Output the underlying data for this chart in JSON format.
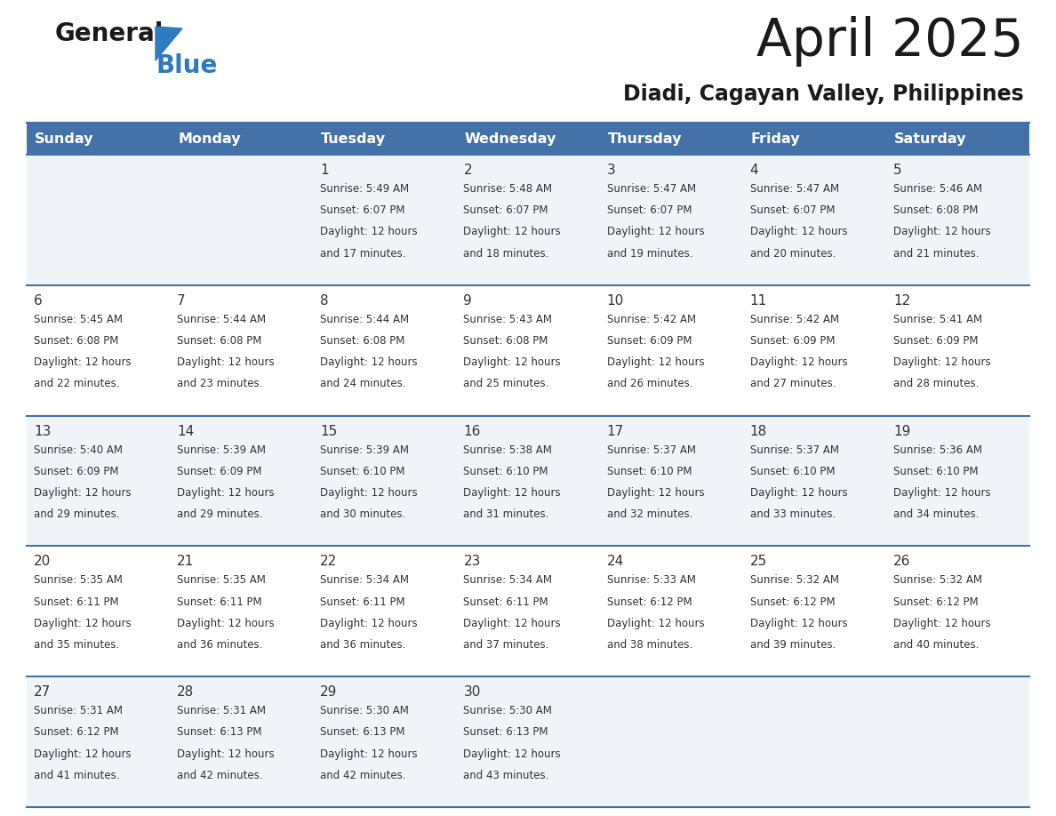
{
  "title": "April 2025",
  "subtitle": "Diadi, Cagayan Valley, Philippines",
  "header_bg": "#4472a8",
  "header_text_color": "#ffffff",
  "days_of_week": [
    "Sunday",
    "Monday",
    "Tuesday",
    "Wednesday",
    "Thursday",
    "Friday",
    "Saturday"
  ],
  "row_bg_odd": "#f0f4f8",
  "row_bg_even": "#ffffff",
  "cell_text_color": "#333333",
  "border_color": "#4472a8",
  "logo_general_color": "#1a1a1a",
  "logo_blue_color": "#2e7bbf",
  "logo_triangle_color": "#2e7bbf",
  "title_color": "#1a1a1a",
  "subtitle_color": "#1a1a1a",
  "calendar_data": [
    [
      {
        "day": "",
        "sunrise": "",
        "sunset": "",
        "daylight_mins": ""
      },
      {
        "day": "",
        "sunrise": "",
        "sunset": "",
        "daylight_mins": ""
      },
      {
        "day": "1",
        "sunrise": "5:49 AM",
        "sunset": "6:07 PM",
        "daylight_mins": "and 17 minutes."
      },
      {
        "day": "2",
        "sunrise": "5:48 AM",
        "sunset": "6:07 PM",
        "daylight_mins": "and 18 minutes."
      },
      {
        "day": "3",
        "sunrise": "5:47 AM",
        "sunset": "6:07 PM",
        "daylight_mins": "and 19 minutes."
      },
      {
        "day": "4",
        "sunrise": "5:47 AM",
        "sunset": "6:07 PM",
        "daylight_mins": "and 20 minutes."
      },
      {
        "day": "5",
        "sunrise": "5:46 AM",
        "sunset": "6:08 PM",
        "daylight_mins": "and 21 minutes."
      }
    ],
    [
      {
        "day": "6",
        "sunrise": "5:45 AM",
        "sunset": "6:08 PM",
        "daylight_mins": "and 22 minutes."
      },
      {
        "day": "7",
        "sunrise": "5:44 AM",
        "sunset": "6:08 PM",
        "daylight_mins": "and 23 minutes."
      },
      {
        "day": "8",
        "sunrise": "5:44 AM",
        "sunset": "6:08 PM",
        "daylight_mins": "and 24 minutes."
      },
      {
        "day": "9",
        "sunrise": "5:43 AM",
        "sunset": "6:08 PM",
        "daylight_mins": "and 25 minutes."
      },
      {
        "day": "10",
        "sunrise": "5:42 AM",
        "sunset": "6:09 PM",
        "daylight_mins": "and 26 minutes."
      },
      {
        "day": "11",
        "sunrise": "5:42 AM",
        "sunset": "6:09 PM",
        "daylight_mins": "and 27 minutes."
      },
      {
        "day": "12",
        "sunrise": "5:41 AM",
        "sunset": "6:09 PM",
        "daylight_mins": "and 28 minutes."
      }
    ],
    [
      {
        "day": "13",
        "sunrise": "5:40 AM",
        "sunset": "6:09 PM",
        "daylight_mins": "and 29 minutes."
      },
      {
        "day": "14",
        "sunrise": "5:39 AM",
        "sunset": "6:09 PM",
        "daylight_mins": "and 29 minutes."
      },
      {
        "day": "15",
        "sunrise": "5:39 AM",
        "sunset": "6:10 PM",
        "daylight_mins": "and 30 minutes."
      },
      {
        "day": "16",
        "sunrise": "5:38 AM",
        "sunset": "6:10 PM",
        "daylight_mins": "and 31 minutes."
      },
      {
        "day": "17",
        "sunrise": "5:37 AM",
        "sunset": "6:10 PM",
        "daylight_mins": "and 32 minutes."
      },
      {
        "day": "18",
        "sunrise": "5:37 AM",
        "sunset": "6:10 PM",
        "daylight_mins": "and 33 minutes."
      },
      {
        "day": "19",
        "sunrise": "5:36 AM",
        "sunset": "6:10 PM",
        "daylight_mins": "and 34 minutes."
      }
    ],
    [
      {
        "day": "20",
        "sunrise": "5:35 AM",
        "sunset": "6:11 PM",
        "daylight_mins": "and 35 minutes."
      },
      {
        "day": "21",
        "sunrise": "5:35 AM",
        "sunset": "6:11 PM",
        "daylight_mins": "and 36 minutes."
      },
      {
        "day": "22",
        "sunrise": "5:34 AM",
        "sunset": "6:11 PM",
        "daylight_mins": "and 36 minutes."
      },
      {
        "day": "23",
        "sunrise": "5:34 AM",
        "sunset": "6:11 PM",
        "daylight_mins": "and 37 minutes."
      },
      {
        "day": "24",
        "sunrise": "5:33 AM",
        "sunset": "6:12 PM",
        "daylight_mins": "and 38 minutes."
      },
      {
        "day": "25",
        "sunrise": "5:32 AM",
        "sunset": "6:12 PM",
        "daylight_mins": "and 39 minutes."
      },
      {
        "day": "26",
        "sunrise": "5:32 AM",
        "sunset": "6:12 PM",
        "daylight_mins": "and 40 minutes."
      }
    ],
    [
      {
        "day": "27",
        "sunrise": "5:31 AM",
        "sunset": "6:12 PM",
        "daylight_mins": "and 41 minutes."
      },
      {
        "day": "28",
        "sunrise": "5:31 AM",
        "sunset": "6:13 PM",
        "daylight_mins": "and 42 minutes."
      },
      {
        "day": "29",
        "sunrise": "5:30 AM",
        "sunset": "6:13 PM",
        "daylight_mins": "and 42 minutes."
      },
      {
        "day": "30",
        "sunrise": "5:30 AM",
        "sunset": "6:13 PM",
        "daylight_mins": "and 43 minutes."
      },
      {
        "day": "",
        "sunrise": "",
        "sunset": "",
        "daylight_mins": ""
      },
      {
        "day": "",
        "sunrise": "",
        "sunset": "",
        "daylight_mins": ""
      },
      {
        "day": "",
        "sunrise": "",
        "sunset": "",
        "daylight_mins": ""
      }
    ]
  ]
}
